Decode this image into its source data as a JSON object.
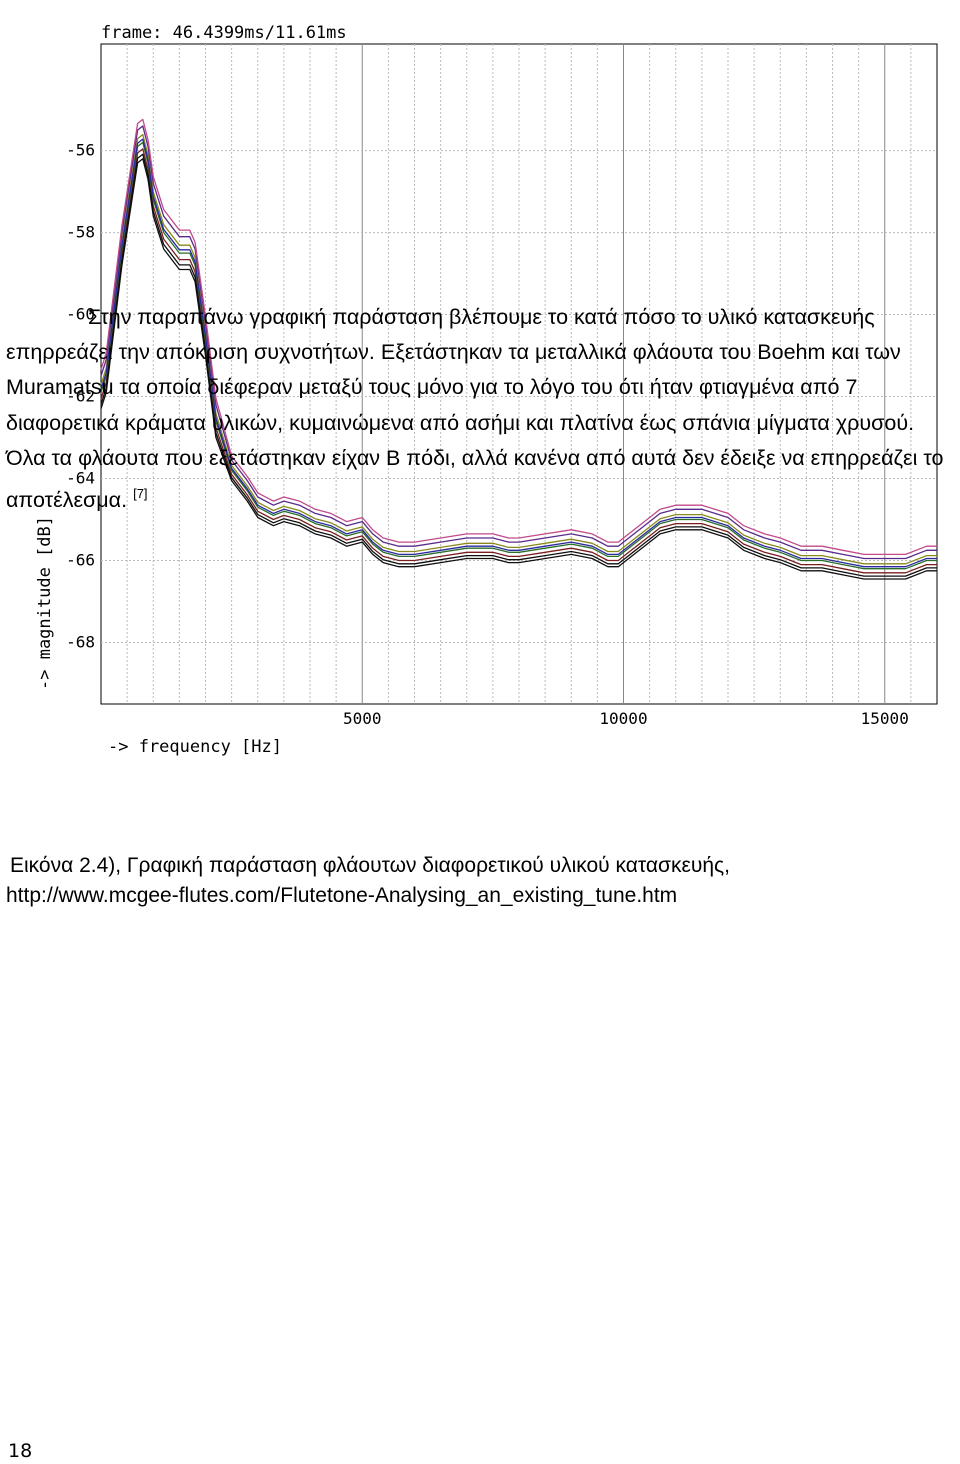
{
  "chart_data": {
    "type": "line",
    "title": "frame: 46.4399ms/11.61ms",
    "xlabel": "-> frequency [Hz]",
    "ylabel": "-> magnitude [dB]",
    "xlim": [
      0,
      16000
    ],
    "ylim": [
      -69.5,
      -53.4
    ],
    "xticks": [
      5000,
      10000,
      15000
    ],
    "xtick_labels": [
      "5000",
      "10000",
      "15000"
    ],
    "yticks": [
      -56,
      -58,
      -60,
      -62,
      -64,
      -66,
      -68
    ],
    "ytick_labels": [
      "-56",
      "-58",
      "-60",
      "-62",
      "-64",
      "-66",
      "-68"
    ],
    "grid": true,
    "legend": "none",
    "colors": [
      "#111111",
      "#7a1f1f",
      "#2a6e2a",
      "#8a8a1e",
      "#5a2a8a",
      "#c24a8a",
      "#2a2aa0",
      "#0e0e0e"
    ],
    "base_curve": {
      "x": [
        0,
        100,
        400,
        700,
        800,
        900,
        1000,
        1200,
        1500,
        1700,
        1800,
        2000,
        2200,
        2500,
        2800,
        3000,
        3300,
        3500,
        3800,
        4100,
        4400,
        4700,
        5000,
        5200,
        5400,
        5700,
        6000,
        6500,
        7000,
        7500,
        7800,
        8000,
        8500,
        9000,
        9400,
        9700,
        9900,
        10100,
        10400,
        10700,
        11000,
        11500,
        12000,
        12300,
        12700,
        13000,
        13400,
        13800,
        14200,
        14600,
        15000,
        15400,
        15800,
        16000
      ],
      "y": [
        -61.9,
        -61.5,
        -58.4,
        -55.9,
        -55.8,
        -56.3,
        -57.2,
        -58.0,
        -58.5,
        -58.5,
        -58.8,
        -60.6,
        -62.6,
        -63.8,
        -64.3,
        -64.7,
        -64.9,
        -64.8,
        -64.9,
        -65.1,
        -65.2,
        -65.4,
        -65.3,
        -65.6,
        -65.8,
        -65.9,
        -65.9,
        -65.8,
        -65.7,
        -65.7,
        -65.8,
        -65.8,
        -65.7,
        -65.6,
        -65.7,
        -65.9,
        -65.9,
        -65.7,
        -65.4,
        -65.1,
        -65.0,
        -65.0,
        -65.2,
        -65.5,
        -65.7,
        -65.8,
        -66.0,
        -66.0,
        -66.1,
        -66.2,
        -66.2,
        -66.2,
        -66.0,
        -66.0
      ]
    },
    "series_offsets": [
      -0.25,
      -0.1,
      0.0,
      0.12,
      0.25,
      0.35,
      0.05,
      -0.18
    ]
  },
  "caption": {
    "line1": "Εικόνα 2.4), Γραφική παράσταση φλάουτων διαφορετικού υλικού κατασκευής,",
    "line2": "http://www.mcgee-flutes.com/Flutetone-Analysing_an_existing_tune.htm"
  },
  "paragraph": {
    "text": "Στην παραπάνω γραφική παράσταση βλέπουμε το κατά πόσο το υλικό κατασκευής επηρρεάζει την απόκριση συχνοτήτων. Εξετάστηκαν τα μεταλλικά φλάουτα του Boehm και των Muramatsu τα οποία διέφεραν μεταξύ τους μόνο για το λόγο του ότι ήταν φτιαγμένα από 7 διαφορετικά κράματα υλικών, κυμαινώμενα από ασήμι και πλατίνα έως σπάνια μίγματα χρυσού. Όλα τα φλάουτα που εξετάστηκαν είχαν B πόδι, αλλά κανένα από αυτά δεν έδειξε να επηρρεάζει το αποτέλεσμα.",
    "citation": "[7]"
  },
  "page_number": "18"
}
